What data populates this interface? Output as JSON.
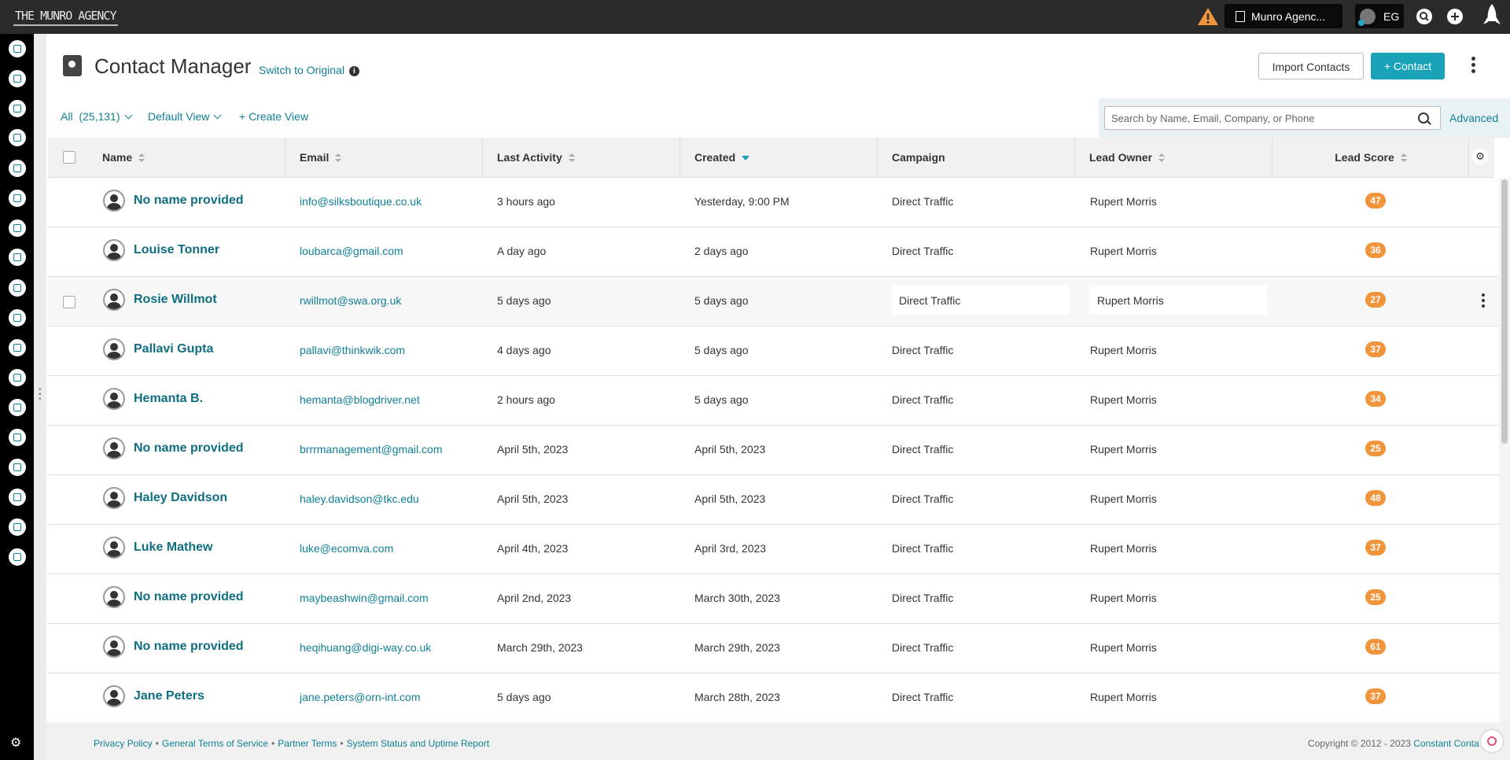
{
  "topbar": {
    "logo": "THE MUNRO AGENCY",
    "account_label": "Munro Agenc...",
    "user_initials": "EG"
  },
  "header": {
    "title": "Contact Manager",
    "switch_link": "Switch to Original",
    "import_button": "Import Contacts",
    "add_contact_button": "+ Contact"
  },
  "filters": {
    "all_label": "All",
    "all_count": "(25,131)",
    "view_label": "Default View",
    "create_view": "+ Create View",
    "search_placeholder": "Search by Name, Email, Company, or Phone",
    "advanced_link": "Advanced"
  },
  "table": {
    "columns": {
      "name": "Name",
      "email": "Email",
      "last_activity": "Last Activity",
      "created": "Created",
      "campaign": "Campaign",
      "lead_owner": "Lead Owner",
      "lead_score": "Lead Score"
    },
    "rows": [
      {
        "name": "No name provided",
        "email": "info@silksboutique.co.uk",
        "last_activity": "3 hours ago",
        "created": "Yesterday, 9:00 PM",
        "campaign": "Direct Traffic",
        "owner": "Rupert Morris",
        "score": "47"
      },
      {
        "name": "Louise Tonner",
        "email": "loubarca@gmail.com",
        "last_activity": "A day ago",
        "created": "2 days ago",
        "campaign": "Direct Traffic",
        "owner": "Rupert Morris",
        "score": "36"
      },
      {
        "name": "Rosie Willmot",
        "email": "rwillmot@swa.org.uk",
        "last_activity": "5 days ago",
        "created": "5 days ago",
        "campaign": "Direct Traffic",
        "owner": "Rupert Morris",
        "score": "27"
      },
      {
        "name": "Pallavi Gupta",
        "email": "pallavi@thinkwik.com",
        "last_activity": "4 days ago",
        "created": "5 days ago",
        "campaign": "Direct Traffic",
        "owner": "Rupert Morris",
        "score": "37"
      },
      {
        "name": "Hemanta B.",
        "email": "hemanta@blogdriver.net",
        "last_activity": "2 hours ago",
        "created": "5 days ago",
        "campaign": "Direct Traffic",
        "owner": "Rupert Morris",
        "score": "34"
      },
      {
        "name": "No name provided",
        "email": "brrrmanagement@gmail.com",
        "last_activity": "April 5th, 2023",
        "created": "April 5th, 2023",
        "campaign": "Direct Traffic",
        "owner": "Rupert Morris",
        "score": "25"
      },
      {
        "name": "Haley Davidson",
        "email": "haley.davidson@tkc.edu",
        "last_activity": "April 5th, 2023",
        "created": "April 5th, 2023",
        "campaign": "Direct Traffic",
        "owner": "Rupert Morris",
        "score": "48"
      },
      {
        "name": "Luke Mathew",
        "email": "luke@ecomva.com",
        "last_activity": "April 4th, 2023",
        "created": "April 3rd, 2023",
        "campaign": "Direct Traffic",
        "owner": "Rupert Morris",
        "score": "37"
      },
      {
        "name": "No name provided",
        "email": "maybeashwin@gmail.com",
        "last_activity": "April 2nd, 2023",
        "created": "March 30th, 2023",
        "campaign": "Direct Traffic",
        "owner": "Rupert Morris",
        "score": "25"
      },
      {
        "name": "No name provided",
        "email": "heqihuang@digi-way.co.uk",
        "last_activity": "March 29th, 2023",
        "created": "March 29th, 2023",
        "campaign": "Direct Traffic",
        "owner": "Rupert Morris",
        "score": "61"
      },
      {
        "name": "Jane Peters",
        "email": "jane.peters@orn-int.com",
        "last_activity": "5 days ago",
        "created": "March 28th, 2023",
        "campaign": "Direct Traffic",
        "owner": "Rupert Morris",
        "score": "37"
      }
    ]
  },
  "footer": {
    "privacy": "Privacy Policy",
    "terms": "General Terms of Service",
    "partner": "Partner Terms",
    "status": "System Status and Uptime Report",
    "copyright": "Copyright © 2012 - 2023",
    "brand": "Constant Conta"
  },
  "colors": {
    "accent": "#1aa3b8",
    "link": "#0f7f95",
    "score_badge": "#f0953b",
    "topbar": "#2b2b2b"
  },
  "icons": {
    "warning": "warning-icon",
    "search": "search-icon",
    "add": "plus-icon",
    "rocket": "rocket-icon",
    "settings": "gear-icon"
  }
}
